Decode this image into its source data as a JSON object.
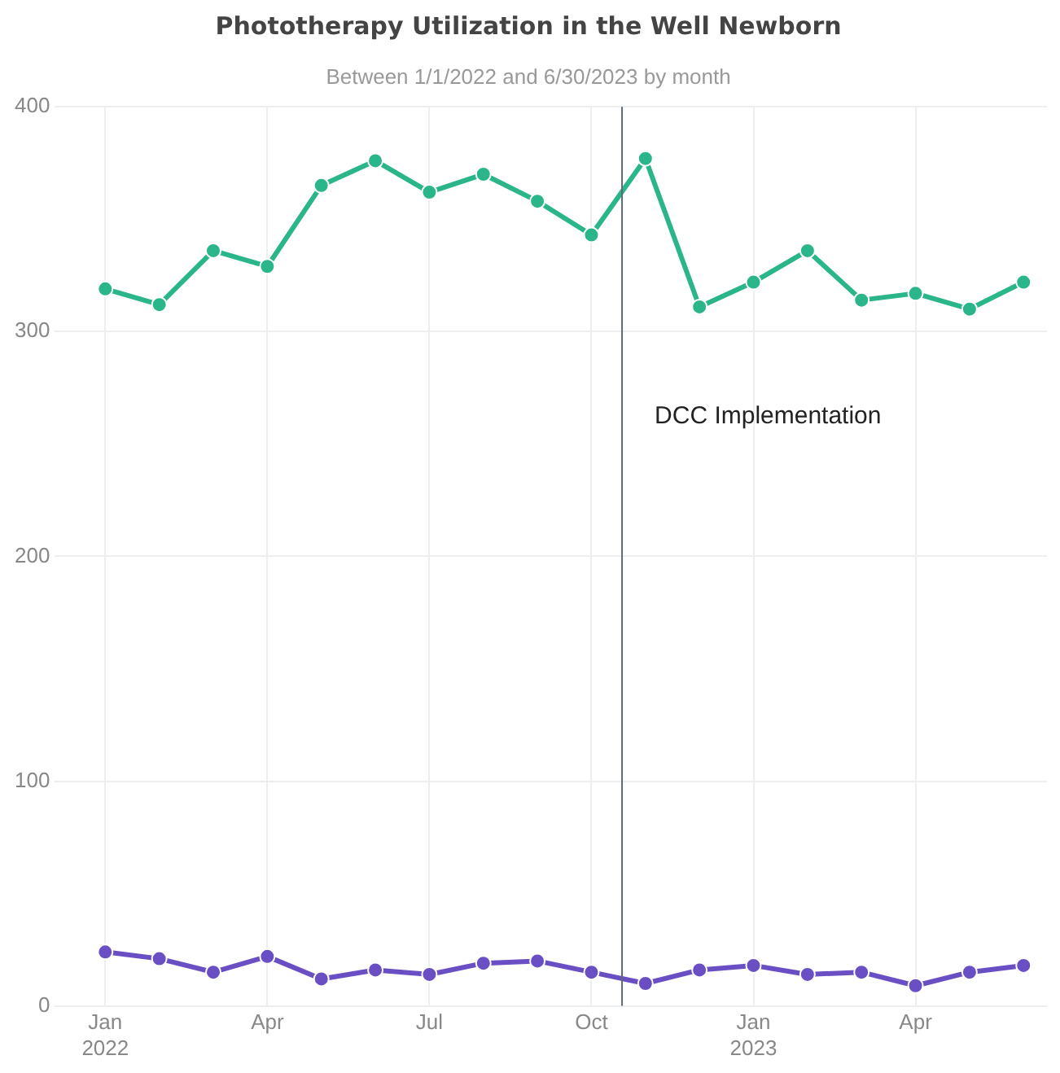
{
  "chart_data": {
    "type": "line",
    "title": "Phototherapy Utilization in the Well Newborn",
    "subtitle": "Between 1/1/2022 and 6/30/2023 by month",
    "x": [
      "2022-01",
      "2022-02",
      "2022-03",
      "2022-04",
      "2022-05",
      "2022-06",
      "2022-07",
      "2022-08",
      "2022-09",
      "2022-10",
      "2022-11",
      "2022-12",
      "2023-01",
      "2023-02",
      "2023-03",
      "2023-04",
      "2023-05",
      "2023-06"
    ],
    "series": [
      {
        "color": "#2bb58a",
        "values": [
          319,
          312,
          336,
          329,
          365,
          376,
          362,
          370,
          358,
          343,
          377,
          311,
          322,
          336,
          314,
          317,
          310,
          322
        ]
      },
      {
        "color": "#6a4fc4",
        "values": [
          24,
          21,
          15,
          22,
          12,
          16,
          14,
          19,
          20,
          15,
          10,
          16,
          18,
          14,
          15,
          9,
          15,
          18
        ]
      }
    ],
    "xlim": [
      "2021-12-03",
      "2023-06-14"
    ],
    "xticks": [
      {
        "value": "2022-01",
        "label": "Jan\n2022"
      },
      {
        "value": "2022-04",
        "label": "Apr"
      },
      {
        "value": "2022-07",
        "label": "Jul"
      },
      {
        "value": "2022-10",
        "label": "Oct"
      },
      {
        "value": "2023-01",
        "label": "Jan\n2023"
      },
      {
        "value": "2023-04",
        "label": "Apr"
      }
    ],
    "ylim": [
      0,
      400
    ],
    "yticks": [
      0,
      100,
      200,
      300,
      400
    ],
    "ref_lines": [
      {
        "axis": "x",
        "value": "2022-10-18",
        "label": "DCC Implementation",
        "color": "#5a6a78"
      }
    ],
    "grid": true,
    "legend": false,
    "marker": "circle",
    "line_style": "solid"
  }
}
